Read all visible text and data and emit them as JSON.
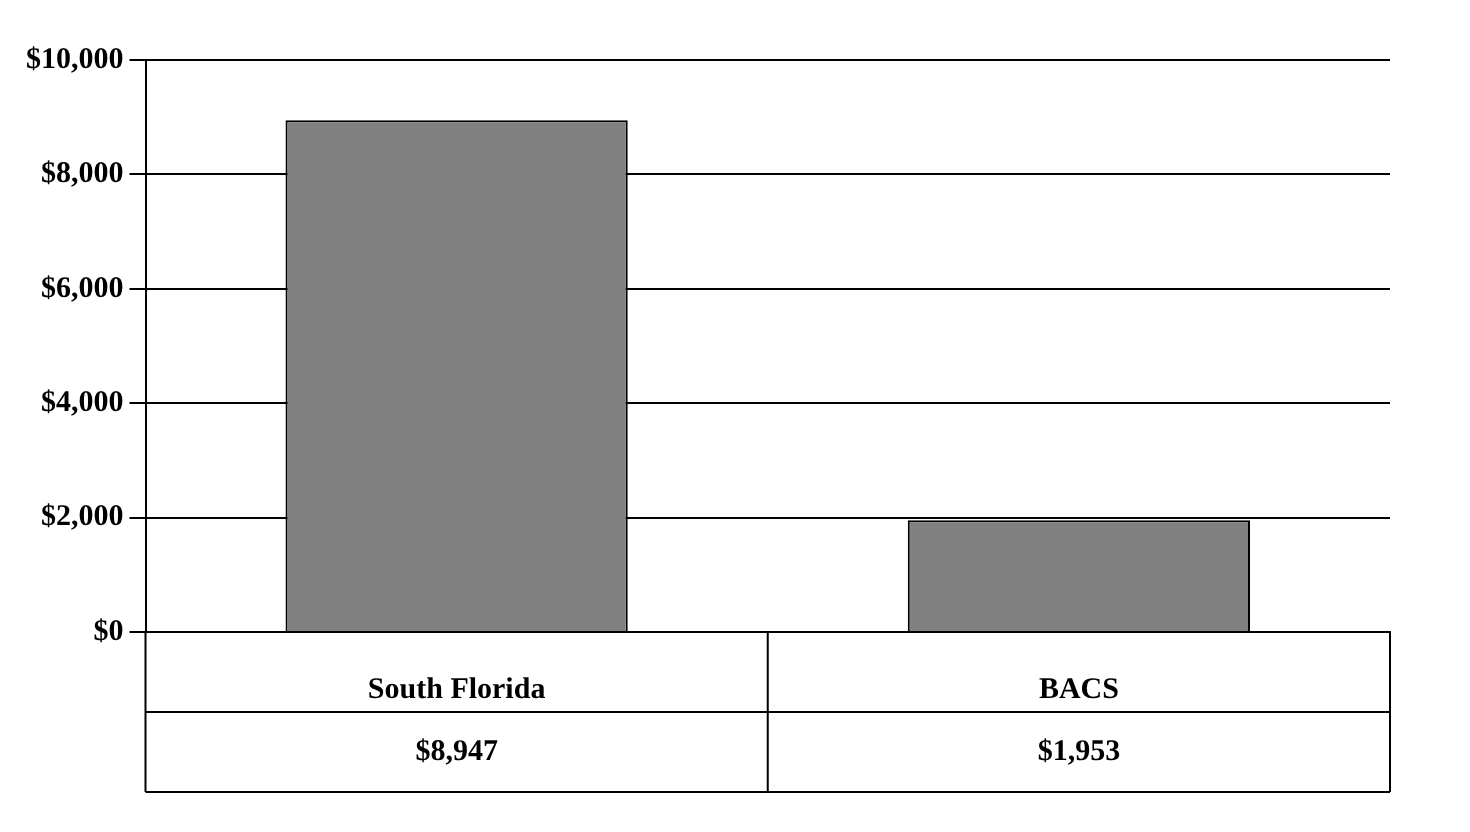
{
  "chart_data": {
    "type": "bar",
    "categories": [
      "South Florida",
      "BACS"
    ],
    "values": [
      8947,
      1953
    ],
    "color": "#808080",
    "value_labels": [
      "$8,947",
      "$1,953"
    ],
    "ylim": [
      0,
      10000
    ],
    "yticks": [
      {
        "value": 0,
        "label": "$0"
      },
      {
        "value": 2000,
        "label": "$2,000"
      },
      {
        "value": 4000,
        "label": "$4,000"
      },
      {
        "value": 6000,
        "label": "$6,000"
      },
      {
        "value": 8000,
        "label": "$8,000"
      },
      {
        "value": 10000,
        "label": "$10,000"
      }
    ],
    "grid": "y",
    "legend": false
  }
}
